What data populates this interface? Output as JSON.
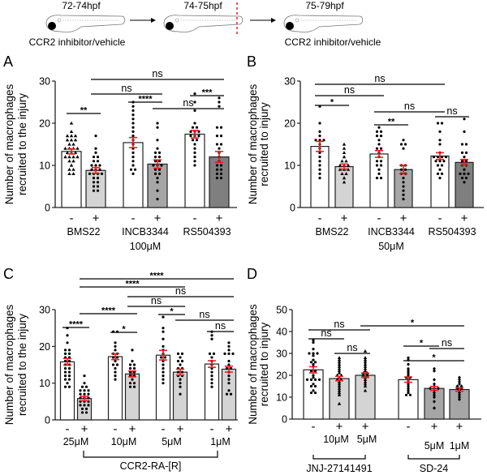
{
  "schematic": {
    "stages": [
      {
        "label": "72-74hpf",
        "caption": "CCR2 inhibitor/vehicle"
      },
      {
        "label": "74-75hpf",
        "caption": ""
      },
      {
        "label": "75-79hpf",
        "caption": "CCR2 inhibitor/vehicle"
      }
    ],
    "cut_color": "#e8262b"
  },
  "colors": {
    "error_bar": "#ee1c24",
    "white_bar": "#ffffff",
    "light_bar": "#d4d4d4",
    "mid_bar": "#a6a6a6",
    "dark_bar": "#7f7f7f"
  },
  "chart_data": [
    {
      "panel": "A",
      "type": "bar",
      "ylabel": [
        "Number of macrophages",
        "recruited to the injury"
      ],
      "ylim": [
        0,
        30
      ],
      "yticks": [
        0,
        10,
        20,
        30
      ],
      "categories": [
        "-",
        "+",
        "-",
        "+",
        "-",
        "+"
      ],
      "groups": [
        {
          "label": "BMS22",
          "bars": [
            0,
            1
          ]
        },
        {
          "label": "INCB3344",
          "bars": [
            2,
            3
          ]
        },
        {
          "label": "RS504393",
          "bars": [
            4,
            5
          ]
        }
      ],
      "footer": "100μM",
      "values": [
        13.3,
        8.8,
        15.4,
        10.3,
        17.4,
        12.0
      ],
      "sem": [
        0.6,
        0.7,
        1.2,
        1.0,
        0.9,
        1.3
      ],
      "fills": [
        "white",
        "light",
        "white",
        "mid",
        "white",
        "dark"
      ],
      "markers": [
        "triangle",
        "circle",
        "circle",
        "circle",
        "circle",
        "circle"
      ],
      "points": [
        [
          20,
          18,
          17,
          17,
          17,
          16,
          16,
          16,
          15,
          15,
          14,
          14,
          14,
          14,
          13,
          13,
          13,
          12,
          12,
          12,
          12,
          11,
          11,
          10,
          9,
          9,
          8,
          8
        ],
        [
          17,
          14,
          13,
          12,
          12,
          11,
          11,
          10,
          10,
          10,
          9,
          9,
          9,
          8,
          8,
          8,
          8,
          7,
          7,
          6,
          6,
          5,
          5,
          4,
          4
        ],
        [
          25,
          24,
          23,
          22,
          21,
          20,
          19,
          18,
          17,
          16,
          15,
          14,
          13,
          12,
          11,
          10,
          9,
          9,
          8
        ],
        [
          20,
          19,
          16,
          14,
          13,
          13,
          12,
          12,
          11,
          11,
          10,
          10,
          10,
          9,
          9,
          8,
          8,
          7,
          6,
          4,
          2
        ],
        [
          27,
          25,
          23,
          20,
          19,
          19,
          18,
          18,
          18,
          17,
          17,
          17,
          16,
          16,
          15,
          14,
          13,
          12,
          11,
          10
        ],
        [
          26,
          25,
          24,
          19,
          19,
          17,
          17,
          15,
          15,
          14,
          13,
          12,
          11,
          10,
          10,
          9,
          9,
          8,
          8,
          7,
          7
        ]
      ],
      "brackets": [
        {
          "from": 0,
          "to": 1,
          "label": "**"
        },
        {
          "from": 3,
          "to": 5,
          "label": "ns"
        },
        {
          "from": 1,
          "to": 3,
          "label": "ns"
        },
        {
          "from": 2,
          "to": 3,
          "label": "****"
        },
        {
          "from": 4,
          "to": 5,
          "label": "***"
        },
        {
          "from": 1,
          "to": 5,
          "label": "ns"
        }
      ]
    },
    {
      "panel": "B",
      "type": "bar",
      "ylabel": [
        "Number of macrophages",
        "recruited to injury"
      ],
      "ylim": [
        0,
        30
      ],
      "yticks": [
        0,
        10,
        20,
        30
      ],
      "categories": [
        "-",
        "+",
        "-",
        "+",
        "-",
        "+"
      ],
      "groups": [
        {
          "label": "BMS22",
          "bars": [
            0,
            1
          ]
        },
        {
          "label": "INCB3344",
          "bars": [
            2,
            3
          ]
        },
        {
          "label": "RS504393",
          "bars": [
            4,
            5
          ]
        }
      ],
      "footer": "50μM",
      "values": [
        14.5,
        9.7,
        12.7,
        9.0,
        12.2,
        10.7
      ],
      "sem": [
        1.2,
        0.6,
        0.8,
        1.0,
        0.8,
        0.7
      ],
      "fills": [
        "white",
        "light",
        "white",
        "mid",
        "white",
        "dark"
      ],
      "markers": [
        "circle",
        "triangle",
        "circle",
        "circle",
        "circle",
        "circle"
      ],
      "points": [
        [
          24,
          20,
          18,
          17,
          16,
          16,
          16,
          15,
          14,
          13,
          12,
          11,
          10,
          9,
          8,
          7
        ],
        [
          15,
          14,
          13,
          12,
          11,
          11,
          10,
          10,
          10,
          9,
          9,
          9,
          8,
          8,
          7,
          6
        ],
        [
          19,
          18,
          18,
          17,
          17,
          16,
          15,
          14,
          14,
          13,
          12,
          11,
          11,
          10,
          10,
          9,
          8,
          7,
          7
        ],
        [
          16,
          15,
          15,
          14,
          10,
          10,
          9,
          9,
          8,
          8,
          7,
          6,
          5,
          4,
          3,
          2
        ],
        [
          20,
          20,
          18,
          16,
          15,
          13,
          12,
          12,
          12,
          12,
          11,
          11,
          11,
          10,
          10,
          9,
          8,
          8,
          7
        ],
        [
          21,
          18,
          15,
          15,
          13,
          13,
          12,
          11,
          11,
          10,
          10,
          9,
          8,
          8,
          8,
          7,
          7,
          6
        ]
      ],
      "brackets": [
        {
          "from": 0,
          "to": 1,
          "label": "*"
        },
        {
          "from": 2,
          "to": 3,
          "label": "**"
        },
        {
          "from": 4,
          "to": 5,
          "label": "ns"
        },
        {
          "from": 2,
          "to": 4,
          "label": "ns"
        },
        {
          "from": 0,
          "to": 2,
          "label": "ns"
        },
        {
          "from": 0,
          "to": 4,
          "label": "ns"
        }
      ]
    },
    {
      "panel": "C",
      "type": "bar",
      "ylabel": [
        "Number of macrophages",
        "recruited to the injury"
      ],
      "ylim": [
        0,
        30
      ],
      "yticks": [
        0,
        10,
        20,
        30
      ],
      "categories": [
        "-",
        "+",
        "-",
        "+",
        "-",
        "+",
        "-",
        "+"
      ],
      "groups": [
        {
          "label": "25μM",
          "bars": [
            0,
            1
          ]
        },
        {
          "label": "10μM",
          "bars": [
            2,
            3
          ]
        },
        {
          "label": "5μM",
          "bars": [
            4,
            5
          ]
        },
        {
          "label": "1μM",
          "bars": [
            6,
            7
          ]
        }
      ],
      "footer": "CCR2-RA-[R]",
      "footer_bracket": [
        1,
        7
      ],
      "values": [
        15.8,
        5.8,
        17.2,
        12.5,
        17.6,
        13.0,
        15.2,
        13.8
      ],
      "sem": [
        0.9,
        0.6,
        0.8,
        0.8,
        1.3,
        0.8,
        0.9,
        0.8
      ],
      "fills": [
        "white",
        "light",
        "white",
        "light",
        "white",
        "light",
        "white",
        "light"
      ],
      "markers": [
        "circle",
        "circle",
        "circle",
        "circle",
        "circle",
        "circle",
        "circle",
        "circle"
      ],
      "points": [
        [
          25,
          23,
          21,
          19,
          19,
          18,
          18,
          17,
          17,
          16,
          16,
          15,
          15,
          14,
          14,
          13,
          13,
          12,
          12,
          11,
          11,
          10,
          9,
          9
        ],
        [
          12,
          10,
          9,
          9,
          8,
          8,
          8,
          7,
          7,
          7,
          6,
          6,
          6,
          5,
          5,
          5,
          4,
          4,
          4,
          3,
          3,
          2,
          2
        ],
        [
          24,
          24,
          21,
          20,
          19,
          18,
          18,
          17,
          17,
          16,
          15,
          15,
          14,
          13,
          12,
          11
        ],
        [
          19,
          16,
          15,
          15,
          14,
          14,
          13,
          13,
          12,
          12,
          11,
          10,
          10,
          9,
          9
        ],
        [
          28,
          25,
          24,
          22,
          20,
          19,
          18,
          17,
          17,
          16,
          15,
          14,
          13,
          12,
          11,
          10
        ],
        [
          18,
          18,
          17,
          16,
          16,
          15,
          14,
          14,
          13,
          13,
          12,
          12,
          11,
          10,
          9,
          7
        ],
        [
          24,
          23,
          22,
          18,
          18,
          17,
          16,
          15,
          14,
          13,
          12,
          11,
          10,
          9
        ],
        [
          21,
          20,
          19,
          18,
          18,
          18,
          16,
          15,
          14,
          14,
          13,
          12,
          11,
          10,
          8,
          7,
          7
        ]
      ],
      "brackets": [
        {
          "from": 0,
          "to": 1,
          "label": "****"
        },
        {
          "from": 2,
          "to": 3,
          "label": "*"
        },
        {
          "from": 4,
          "to": 5,
          "label": "*"
        },
        {
          "from": 6,
          "to": 7,
          "label": "ns"
        },
        {
          "from": 1,
          "to": 3,
          "label": "****"
        },
        {
          "from": 5,
          "to": 7,
          "label": "ns"
        },
        {
          "from": 3,
          "to": 5,
          "label": "ns"
        },
        {
          "from": 3,
          "to": 7,
          "label": "ns"
        },
        {
          "from": 1,
          "to": 5,
          "label": "****"
        },
        {
          "from": 1,
          "to": 7,
          "label": "****"
        }
      ]
    },
    {
      "panel": "D",
      "type": "bar",
      "ylabel": [
        "Number of macrophages",
        "recruited to injury"
      ],
      "ylim": [
        0,
        50
      ],
      "yticks": [
        0,
        10,
        20,
        30,
        40,
        50
      ],
      "categories": [
        "-",
        "+",
        "+",
        "-",
        "+",
        "+"
      ],
      "sublabels": [
        "",
        "10μM",
        "5μM",
        "",
        "5μM",
        "1μM"
      ],
      "groups": [
        {
          "label": "JNJ-27141491",
          "bars": [
            0,
            2
          ]
        },
        {
          "label": "SD-24",
          "bars": [
            3,
            5
          ]
        }
      ],
      "values": [
        22.5,
        18.5,
        20.0,
        18.0,
        14.0,
        13.5
      ],
      "sem": [
        1.4,
        1.0,
        1.0,
        1.2,
        0.9,
        0.8
      ],
      "fills": [
        "white",
        "light",
        "light",
        "white",
        "mid",
        "mid"
      ],
      "markers": [
        "circle",
        "triangle",
        "triangle",
        "circle",
        "diamond",
        "diamond"
      ],
      "points": [
        [
          36,
          35,
          32,
          30,
          30,
          30,
          29,
          27,
          26,
          26,
          25,
          24,
          22,
          22,
          20,
          19,
          18,
          18,
          18,
          18,
          16,
          15,
          15,
          13,
          12,
          12
        ],
        [
          28,
          27,
          26,
          25,
          24,
          23,
          22,
          21,
          20,
          20,
          19,
          18,
          18,
          17,
          16,
          15,
          14,
          13,
          12,
          11,
          7
        ],
        [
          31,
          28,
          27,
          26,
          25,
          24,
          23,
          22,
          21,
          21,
          20,
          20,
          19,
          18,
          17,
          16,
          15,
          13
        ],
        [
          28,
          27,
          25,
          23,
          22,
          21,
          20,
          19,
          19,
          18,
          17,
          16,
          15,
          14,
          13,
          12,
          11,
          11
        ],
        [
          23,
          22,
          18,
          16,
          15,
          14,
          14,
          14,
          13,
          12,
          11,
          10,
          8,
          5
        ],
        [
          19,
          18,
          17,
          16,
          15,
          15,
          14,
          14,
          13,
          12,
          11,
          10,
          9
        ]
      ],
      "brackets": [
        {
          "from": 1,
          "to": 2,
          "label": "ns"
        },
        {
          "from": 4,
          "to": 5,
          "label": "ns"
        },
        {
          "from": 3,
          "to": 5,
          "label": "*"
        },
        {
          "from": 0,
          "to": 1,
          "label": "ns"
        },
        {
          "from": 3,
          "to": 4,
          "label": "*"
        },
        {
          "from": 0,
          "to": 2,
          "label": "ns"
        },
        {
          "from": 2,
          "to": 5,
          "label": "*"
        }
      ]
    }
  ]
}
